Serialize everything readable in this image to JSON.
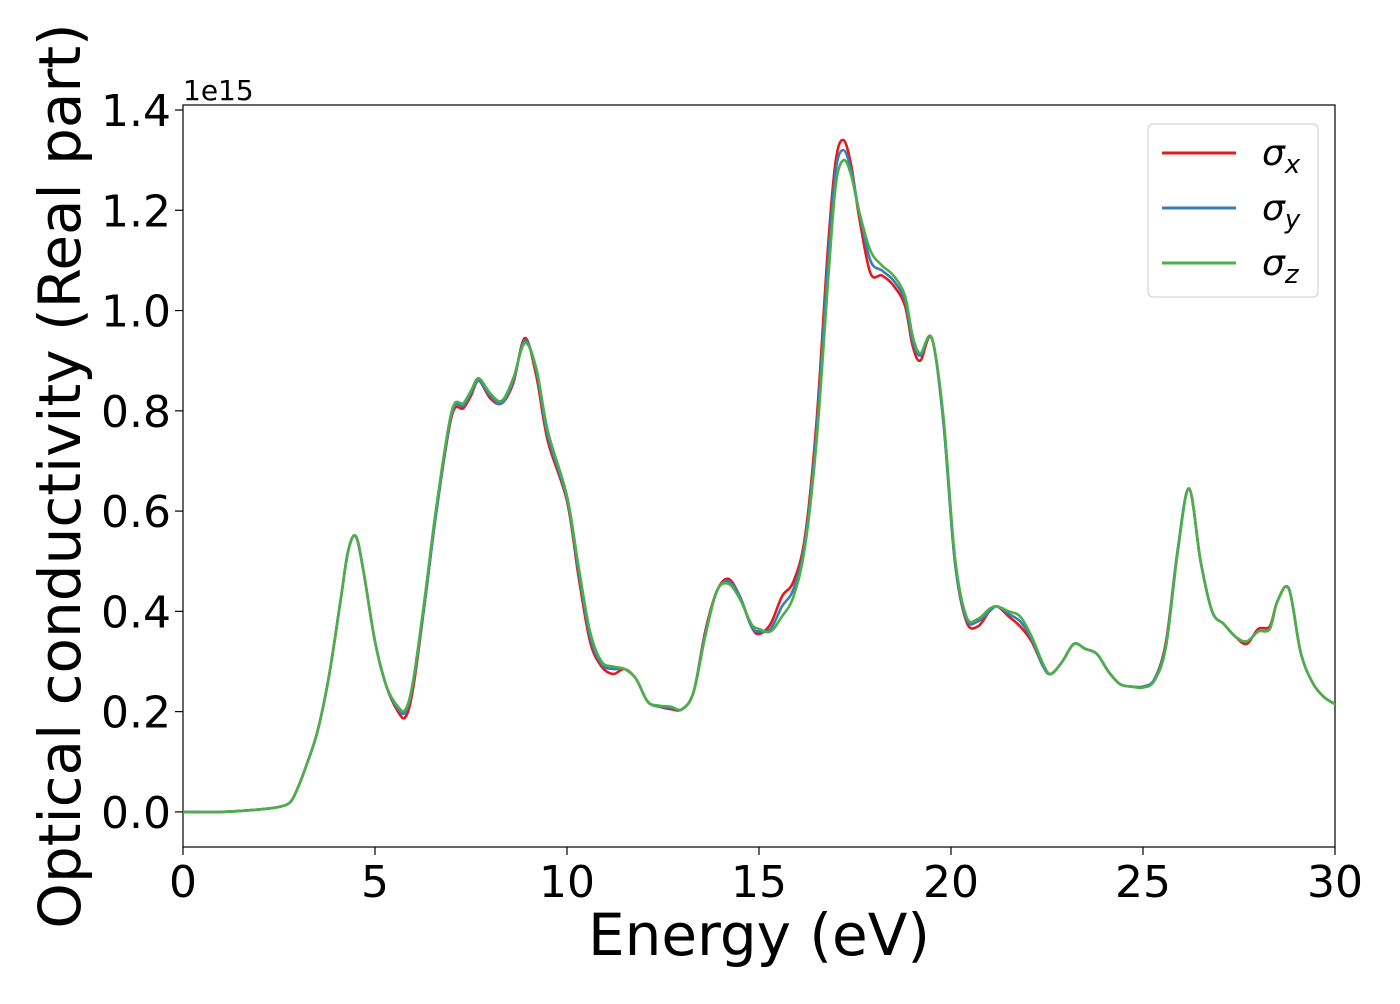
{
  "chart_data": {
    "type": "line",
    "xlabel": "Energy (eV)",
    "ylabel": "Optical conductivity (Real part)",
    "y_offset_label": "1e15",
    "xlim": [
      0,
      30
    ],
    "ylim": [
      -0.07,
      1.41
    ],
    "x_ticks": [
      0,
      5,
      10,
      15,
      20,
      25,
      30
    ],
    "x_tick_labels": [
      "0",
      "5",
      "10",
      "15",
      "20",
      "25",
      "30"
    ],
    "y_ticks": [
      0.0,
      0.2,
      0.4,
      0.6,
      0.8,
      1.0,
      1.2,
      1.4
    ],
    "y_tick_labels": [
      "0.0",
      "0.2",
      "0.4",
      "0.6",
      "0.8",
      "1.0",
      "1.2",
      "1.4"
    ],
    "grid": false,
    "legend_position": "top-right",
    "series": [
      {
        "name": "σx",
        "label_base": "σ",
        "label_sub": "x",
        "color": "#e41a1c",
        "x": [
          0,
          1,
          2,
          2.5,
          2.8,
          3.0,
          3.2,
          3.5,
          3.8,
          4.1,
          4.3,
          4.5,
          4.7,
          5.0,
          5.3,
          5.6,
          5.8,
          6.0,
          6.3,
          6.6,
          7.0,
          7.3,
          7.5,
          7.7,
          8.0,
          8.3,
          8.6,
          8.9,
          9.2,
          9.5,
          10.0,
          10.3,
          10.6,
          10.9,
          11.2,
          11.5,
          11.8,
          12.1,
          12.4,
          12.7,
          13.0,
          13.3,
          13.6,
          13.9,
          14.2,
          14.5,
          14.8,
          15.0,
          15.3,
          15.6,
          15.9,
          16.2,
          16.5,
          16.8,
          17.0,
          17.2,
          17.4,
          17.6,
          17.9,
          18.2,
          18.5,
          18.8,
          19.0,
          19.2,
          19.5,
          19.8,
          20.1,
          20.4,
          20.7,
          21.0,
          21.2,
          21.5,
          21.8,
          22.1,
          22.4,
          22.6,
          22.9,
          23.2,
          23.5,
          23.8,
          24.1,
          24.4,
          24.7,
          25.0,
          25.3,
          25.6,
          25.9,
          26.2,
          26.5,
          26.8,
          27.1,
          27.4,
          27.7,
          28.0,
          28.3,
          28.5,
          28.8,
          29.1,
          29.4,
          29.7,
          30.0
        ],
        "values": [
          0.0,
          0.0,
          0.005,
          0.01,
          0.02,
          0.05,
          0.09,
          0.16,
          0.27,
          0.42,
          0.52,
          0.55,
          0.48,
          0.34,
          0.25,
          0.2,
          0.19,
          0.25,
          0.42,
          0.6,
          0.79,
          0.805,
          0.83,
          0.86,
          0.825,
          0.815,
          0.855,
          0.945,
          0.87,
          0.74,
          0.62,
          0.47,
          0.34,
          0.29,
          0.275,
          0.285,
          0.265,
          0.22,
          0.21,
          0.205,
          0.205,
          0.24,
          0.36,
          0.44,
          0.465,
          0.43,
          0.37,
          0.355,
          0.375,
          0.43,
          0.46,
          0.55,
          0.78,
          1.13,
          1.3,
          1.34,
          1.29,
          1.19,
          1.075,
          1.07,
          1.05,
          1.01,
          0.93,
          0.9,
          0.945,
          0.78,
          0.5,
          0.38,
          0.37,
          0.4,
          0.41,
          0.39,
          0.37,
          0.34,
          0.29,
          0.275,
          0.3,
          0.335,
          0.325,
          0.315,
          0.28,
          0.255,
          0.25,
          0.25,
          0.265,
          0.34,
          0.52,
          0.645,
          0.5,
          0.4,
          0.375,
          0.35,
          0.335,
          0.365,
          0.37,
          0.42,
          0.445,
          0.32,
          0.26,
          0.23,
          0.215
        ]
      },
      {
        "name": "σy",
        "label_base": "σ",
        "label_sub": "y",
        "color": "#377eb8",
        "x": [
          0,
          1,
          2,
          2.5,
          2.8,
          3.0,
          3.2,
          3.5,
          3.8,
          4.1,
          4.3,
          4.5,
          4.7,
          5.0,
          5.3,
          5.6,
          5.8,
          6.0,
          6.3,
          6.6,
          7.0,
          7.3,
          7.5,
          7.7,
          8.0,
          8.3,
          8.6,
          8.9,
          9.2,
          9.5,
          10.0,
          10.3,
          10.6,
          10.9,
          11.2,
          11.5,
          11.8,
          12.1,
          12.4,
          12.7,
          13.0,
          13.3,
          13.6,
          13.9,
          14.2,
          14.5,
          14.8,
          15.0,
          15.3,
          15.6,
          15.9,
          16.2,
          16.5,
          16.8,
          17.0,
          17.2,
          17.4,
          17.6,
          17.9,
          18.2,
          18.5,
          18.8,
          19.0,
          19.2,
          19.5,
          19.8,
          20.1,
          20.4,
          20.7,
          21.0,
          21.2,
          21.5,
          21.8,
          22.1,
          22.4,
          22.6,
          22.9,
          23.2,
          23.5,
          23.8,
          24.1,
          24.4,
          24.7,
          25.0,
          25.3,
          25.6,
          25.9,
          26.2,
          26.5,
          26.8,
          27.1,
          27.4,
          27.7,
          28.0,
          28.3,
          28.5,
          28.8,
          29.1,
          29.4,
          29.7,
          30.0
        ],
        "values": [
          0.0,
          0.0,
          0.005,
          0.01,
          0.02,
          0.05,
          0.09,
          0.16,
          0.27,
          0.42,
          0.52,
          0.55,
          0.48,
          0.34,
          0.25,
          0.205,
          0.2,
          0.26,
          0.42,
          0.6,
          0.795,
          0.81,
          0.835,
          0.86,
          0.83,
          0.815,
          0.86,
          0.94,
          0.88,
          0.75,
          0.625,
          0.48,
          0.35,
          0.295,
          0.285,
          0.285,
          0.265,
          0.22,
          0.21,
          0.208,
          0.205,
          0.24,
          0.355,
          0.44,
          0.46,
          0.43,
          0.37,
          0.36,
          0.365,
          0.41,
          0.445,
          0.54,
          0.76,
          1.1,
          1.28,
          1.32,
          1.28,
          1.2,
          1.1,
          1.08,
          1.06,
          1.02,
          0.94,
          0.91,
          0.945,
          0.78,
          0.5,
          0.385,
          0.38,
          0.4,
          0.41,
          0.395,
          0.38,
          0.345,
          0.29,
          0.275,
          0.3,
          0.335,
          0.325,
          0.315,
          0.28,
          0.255,
          0.25,
          0.25,
          0.265,
          0.335,
          0.52,
          0.645,
          0.5,
          0.4,
          0.375,
          0.35,
          0.34,
          0.36,
          0.365,
          0.42,
          0.445,
          0.32,
          0.26,
          0.23,
          0.215
        ]
      },
      {
        "name": "σz",
        "label_base": "σ",
        "label_sub": "z",
        "color": "#4daf4a",
        "x": [
          0,
          1,
          2,
          2.5,
          2.8,
          3.0,
          3.2,
          3.5,
          3.8,
          4.1,
          4.3,
          4.5,
          4.7,
          5.0,
          5.3,
          5.6,
          5.8,
          6.0,
          6.3,
          6.6,
          7.0,
          7.3,
          7.5,
          7.7,
          8.0,
          8.3,
          8.6,
          8.9,
          9.2,
          9.5,
          10.0,
          10.3,
          10.6,
          10.9,
          11.2,
          11.5,
          11.8,
          12.1,
          12.4,
          12.7,
          13.0,
          13.3,
          13.6,
          13.9,
          14.2,
          14.5,
          14.8,
          15.0,
          15.3,
          15.6,
          15.9,
          16.2,
          16.5,
          16.8,
          17.0,
          17.2,
          17.4,
          17.6,
          17.9,
          18.2,
          18.5,
          18.8,
          19.0,
          19.2,
          19.5,
          19.8,
          20.1,
          20.4,
          20.7,
          21.0,
          21.2,
          21.5,
          21.8,
          22.1,
          22.4,
          22.6,
          22.9,
          23.2,
          23.5,
          23.8,
          24.1,
          24.4,
          24.7,
          25.0,
          25.3,
          25.6,
          25.9,
          26.2,
          26.5,
          26.8,
          27.1,
          27.4,
          27.7,
          28.0,
          28.3,
          28.5,
          28.8,
          29.1,
          29.4,
          29.7,
          30.0
        ],
        "values": [
          0.0,
          0.0,
          0.005,
          0.01,
          0.02,
          0.05,
          0.09,
          0.16,
          0.27,
          0.42,
          0.52,
          0.55,
          0.48,
          0.34,
          0.25,
          0.21,
          0.205,
          0.265,
          0.43,
          0.61,
          0.8,
          0.815,
          0.84,
          0.865,
          0.835,
          0.82,
          0.865,
          0.935,
          0.885,
          0.76,
          0.63,
          0.49,
          0.36,
          0.3,
          0.29,
          0.285,
          0.265,
          0.22,
          0.212,
          0.21,
          0.205,
          0.24,
          0.35,
          0.44,
          0.455,
          0.425,
          0.375,
          0.365,
          0.36,
          0.39,
          0.43,
          0.53,
          0.74,
          1.06,
          1.25,
          1.3,
          1.27,
          1.2,
          1.12,
          1.09,
          1.07,
          1.03,
          0.95,
          0.915,
          0.945,
          0.79,
          0.51,
          0.39,
          0.385,
          0.405,
          0.41,
          0.4,
          0.39,
          0.35,
          0.295,
          0.275,
          0.3,
          0.335,
          0.325,
          0.315,
          0.28,
          0.255,
          0.25,
          0.248,
          0.262,
          0.33,
          0.515,
          0.645,
          0.5,
          0.4,
          0.375,
          0.35,
          0.34,
          0.36,
          0.365,
          0.42,
          0.445,
          0.32,
          0.26,
          0.23,
          0.215
        ]
      }
    ]
  }
}
